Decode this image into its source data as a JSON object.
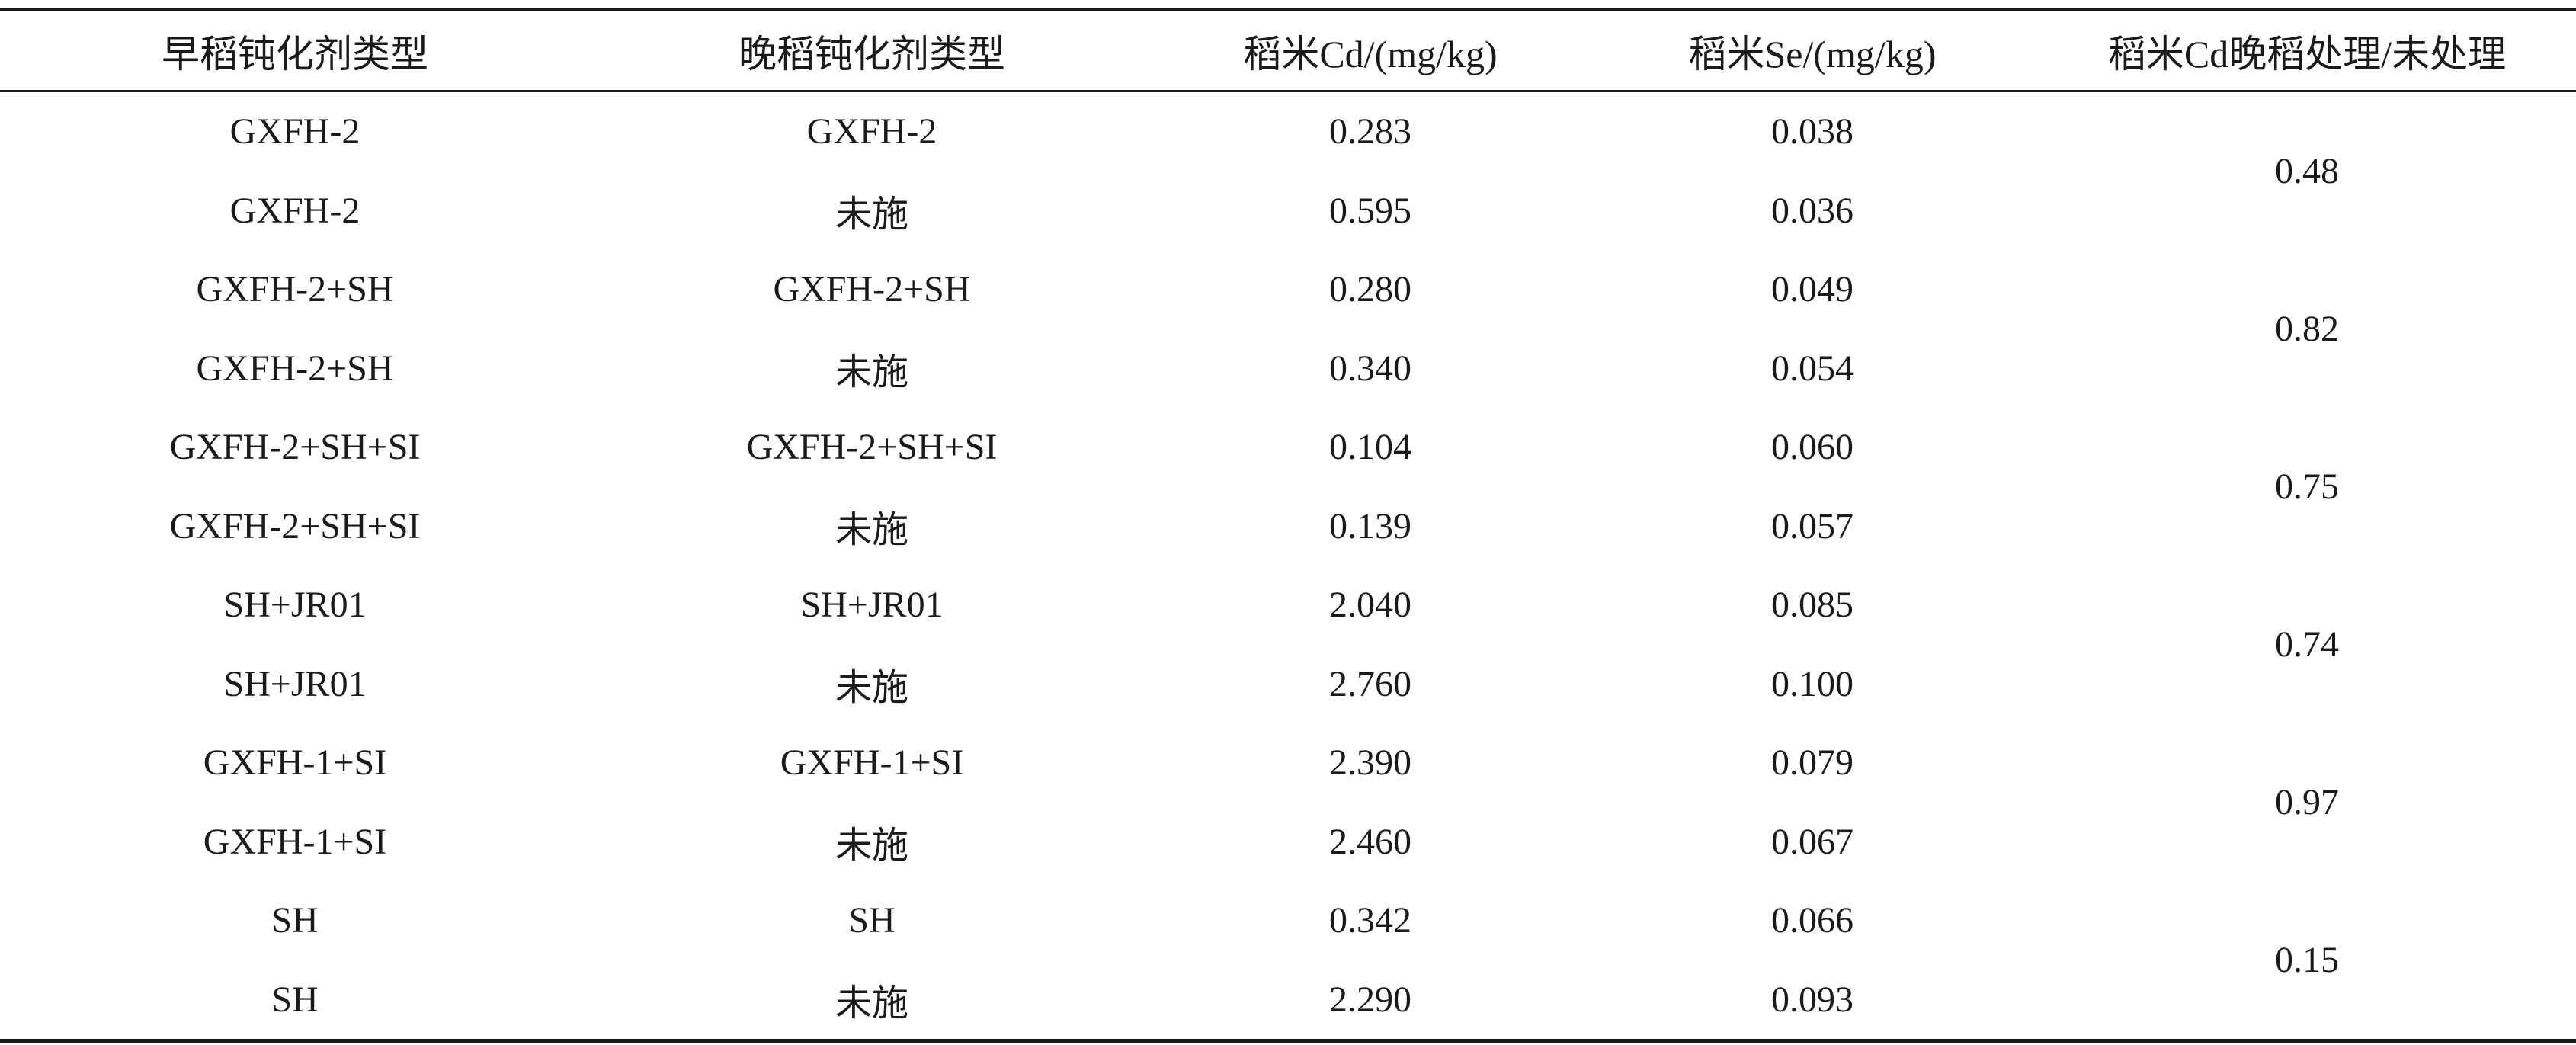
{
  "table": {
    "headers": [
      "早稻钝化剂类型",
      "晚稻钝化剂类型",
      "稻米Cd/(mg/kg)",
      "稻米Se/(mg/kg)",
      "稻米Cd晚稻处理/未处理"
    ],
    "rows": [
      [
        "GXFH-2",
        "GXFH-2",
        "0.283",
        "0.038"
      ],
      [
        "GXFH-2",
        "未施",
        "0.595",
        "0.036"
      ],
      [
        "GXFH-2+SH",
        "GXFH-2+SH",
        "0.280",
        "0.049"
      ],
      [
        "GXFH-2+SH",
        "未施",
        "0.340",
        "0.054"
      ],
      [
        "GXFH-2+SH+SI",
        "GXFH-2+SH+SI",
        "0.104",
        "0.060"
      ],
      [
        "GXFH-2+SH+SI",
        "未施",
        "0.139",
        "0.057"
      ],
      [
        "SH+JR01",
        "SH+JR01",
        "2.040",
        "0.085"
      ],
      [
        "SH+JR01",
        "未施",
        "2.760",
        "0.100"
      ],
      [
        "GXFH-1+SI",
        "GXFH-1+SI",
        "2.390",
        "0.079"
      ],
      [
        "GXFH-1+SI",
        "未施",
        "2.460",
        "0.067"
      ],
      [
        "SH",
        "SH",
        "0.342",
        "0.066"
      ],
      [
        "SH",
        "未施",
        "2.290",
        "0.093"
      ]
    ],
    "ratios": [
      "0.48",
      "0.82",
      "0.75",
      "0.74",
      "0.97",
      "0.15"
    ]
  }
}
